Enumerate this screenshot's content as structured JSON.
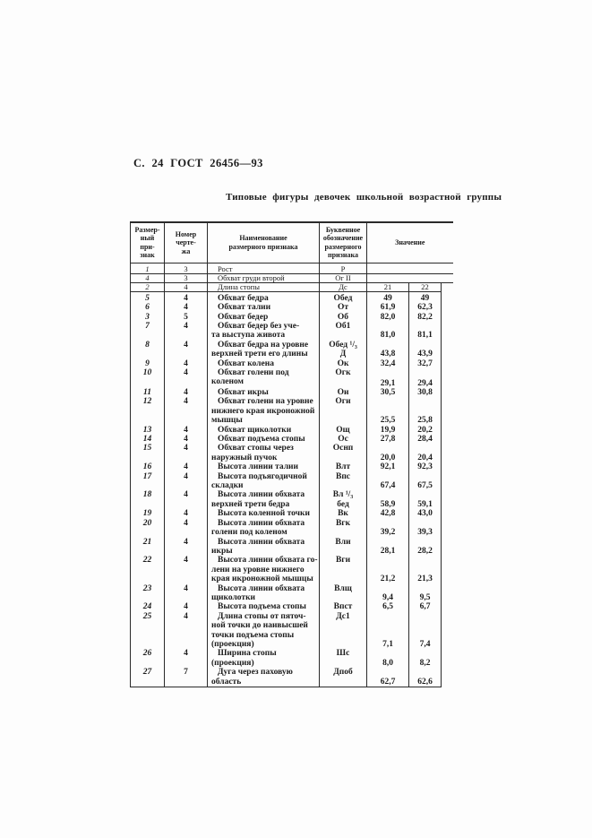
{
  "page": {
    "header": "С. 24 ГОСТ 26456—93",
    "title": "Типовые фигуры девочек школьной возрастной группы"
  },
  "table": {
    "headers": {
      "attr": "Размер-\nный\nпри-\nзнак",
      "sheet": "Номер\nчерте-\nжа",
      "name": "Наименование\nразмерного признака",
      "desig": "Буквенное\nобозначение\nразмерного\nпризнака",
      "value": "Значение"
    },
    "pre_rows": [
      {
        "attr": "1",
        "sheet": "3",
        "name": "Рост",
        "desig": "Р",
        "v1": "",
        "v2": ""
      },
      {
        "attr": "4",
        "sheet": "3",
        "name": "Обхват груди второй",
        "desig": "Ог II",
        "v1": "",
        "v2": ""
      },
      {
        "attr": "2",
        "sheet": "4",
        "name": "Длина стопы",
        "desig": "Дс",
        "v1": "21",
        "v2": "22"
      }
    ],
    "rows": [
      {
        "attr": "5",
        "sheet": "4",
        "name": "Обхват бедра",
        "desig": "Обед",
        "v1": "49",
        "v2": "49"
      },
      {
        "attr": "6",
        "sheet": "4",
        "name": "Обхват талии",
        "desig": "От",
        "v1": "61,9",
        "v2": "62,3"
      },
      {
        "attr": "3",
        "sheet": "5",
        "name": "Обхват бедер",
        "desig": "Об",
        "v1": "82,0",
        "v2": "82,2"
      },
      {
        "attr": "7",
        "sheet": "4",
        "name": "Обхват бедер без уче-\nта выступа живота",
        "desig": "Об1",
        "v1": "81,0",
        "v2": "81,1"
      },
      {
        "attr": "8",
        "sheet": "4",
        "name": "Обхват бедра на уровне\nверхней трети его длины",
        "desig": "Обед ¹/₃\nД",
        "v1": "43,8",
        "v2": "43,9"
      },
      {
        "attr": "9",
        "sheet": "4",
        "name": "Обхват колена",
        "desig": "Ок",
        "v1": "32,4",
        "v2": "32,7"
      },
      {
        "attr": "10",
        "sheet": "4",
        "name": "Обхват голени под коленом",
        "desig": "Огк",
        "v1": "29,1",
        "v2": "29,4",
        "tall": true
      },
      {
        "attr": "11",
        "sheet": "4",
        "name": "Обхват икры",
        "desig": "Ои",
        "v1": "30,5",
        "v2": "30,8"
      },
      {
        "attr": "12",
        "sheet": "4",
        "name": "Обхват голени на уровне\nнижнего края икроножной\nмышцы",
        "desig": "Оги",
        "v1": "25,5",
        "v2": "25,8"
      },
      {
        "attr": "13",
        "sheet": "4",
        "name": "Обхват щиколотки",
        "desig": "Ощ",
        "v1": "19,9",
        "v2": "20,2"
      },
      {
        "attr": "14",
        "sheet": "4",
        "name": "Обхват подъема стопы",
        "desig": "Ос",
        "v1": "27,8",
        "v2": "28,4"
      },
      {
        "attr": "15",
        "sheet": "4",
        "name": "Обхват стопы через\nнаружный пучок",
        "desig": "Оснп",
        "v1": "20,0",
        "v2": "20,4"
      },
      {
        "attr": "16",
        "sheet": "4",
        "name": "Высота линии талии",
        "desig": "Влт",
        "v1": "92,1",
        "v2": "92,3"
      },
      {
        "attr": "17",
        "sheet": "4",
        "name": "Высота подъягодичной\nскладки",
        "desig": "Впс",
        "v1": "67,4",
        "v2": "67,5"
      },
      {
        "attr": "18",
        "sheet": "4",
        "name": "Высота линии обхвата\nверхней трети бедра",
        "desig": "Вл ¹/₃\nбед",
        "v1": "58,9",
        "v2": "59,1"
      },
      {
        "attr": "19",
        "sheet": "4",
        "name": "Высота коленной точки",
        "desig": "Вк",
        "v1": "42,8",
        "v2": "43,0"
      },
      {
        "attr": "20",
        "sheet": "4",
        "name": "Высота линии обхвата\nголени под коленом",
        "desig": "Вгк",
        "v1": "39,2",
        "v2": "39,3"
      },
      {
        "attr": "21",
        "sheet": "4",
        "name": "Высота линии обхвата\nикры",
        "desig": "Вли",
        "v1": "28,1",
        "v2": "28,2"
      },
      {
        "attr": "22",
        "sheet": "4",
        "name": "Высота линии обхвата го-\nлени на уровне нижнего\nкрая икроножной мышцы",
        "desig": "Вги",
        "v1": "21,2",
        "v2": "21,3"
      },
      {
        "attr": "23",
        "sheet": "4",
        "name": "Высота линии обхвата\nщиколотки",
        "desig": "Влщ",
        "v1": "9,4",
        "v2": "9,5"
      },
      {
        "attr": "24",
        "sheet": "4",
        "name": "Высота подъема стопы",
        "desig": "Впст",
        "v1": "6,5",
        "v2": "6,7"
      },
      {
        "attr": "25",
        "sheet": "4",
        "name": "Длина стопы от пяточ-\nной точки до наивысшей\nточки подъема стопы\n(проекция)",
        "desig": "Дс1",
        "v1": "7,1",
        "v2": "7,4"
      },
      {
        "attr": "26",
        "sheet": "4",
        "name": "Ширина стопы (проекция)",
        "desig": "Шс",
        "v1": "8,0",
        "v2": "8,2"
      },
      {
        "attr": "27",
        "sheet": "7",
        "name": "Дуга через паховую\nобласть",
        "desig": "Дпоб",
        "v1": "62,7",
        "v2": "62,6"
      }
    ]
  }
}
